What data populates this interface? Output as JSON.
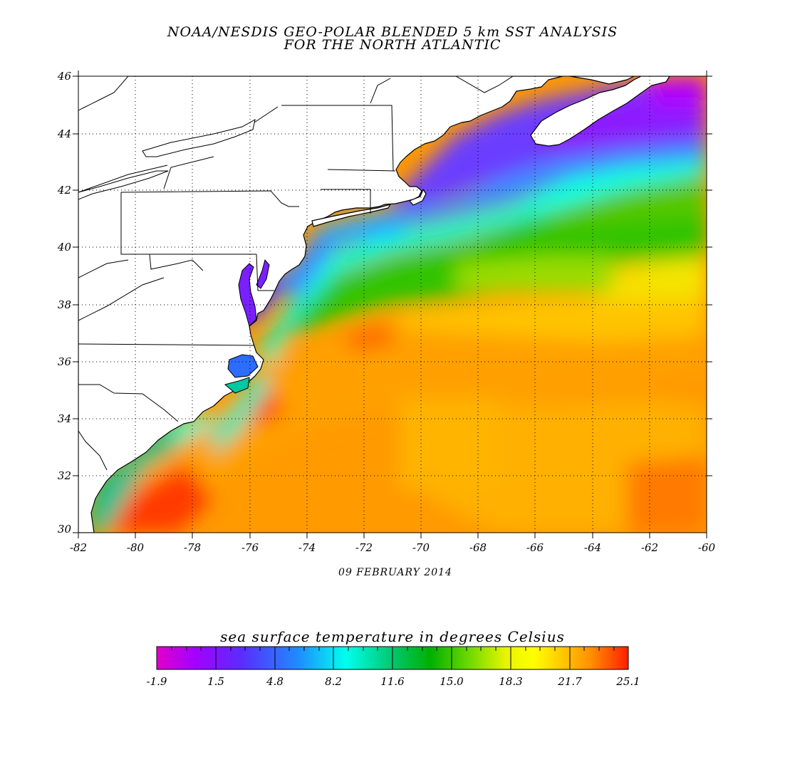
{
  "title": {
    "line1": "NOAA/NESDIS GEO-POLAR BLENDED 5 km SST ANALYSIS",
    "line2": "FOR THE NORTH ATLANTIC"
  },
  "date_label": "09 FEBRUARY 2014",
  "map": {
    "lon_range": [
      -82,
      -60
    ],
    "lat_range": [
      30,
      46
    ],
    "gridlines": "dotted",
    "lon_ticks": [
      "-82",
      "-80",
      "-78",
      "-76",
      "-74",
      "-72",
      "-70",
      "-68",
      "-66",
      "-64",
      "-62",
      "-60"
    ],
    "lat_ticks": [
      "30",
      "32",
      "34",
      "36",
      "38",
      "40",
      "42",
      "44",
      "46"
    ],
    "land_color": "#ffffff",
    "coast_color": "#000000"
  },
  "colorbar": {
    "title": "sea surface temperature in degrees Celsius",
    "labels": [
      "-1.9",
      "1.5",
      "4.8",
      "8.2",
      "11.6",
      "15.0",
      "18.3",
      "21.7",
      "25.1"
    ],
    "min": -1.9,
    "max": 25.1,
    "colors": [
      "#e000c8",
      "#8a00ff",
      "#4a3cff",
      "#1f8cff",
      "#00ffee",
      "#00c88c",
      "#00b000",
      "#50d000",
      "#d8f000",
      "#ffff00",
      "#ffc800",
      "#ff9600",
      "#ff6a00",
      "#ff1e00"
    ]
  }
}
